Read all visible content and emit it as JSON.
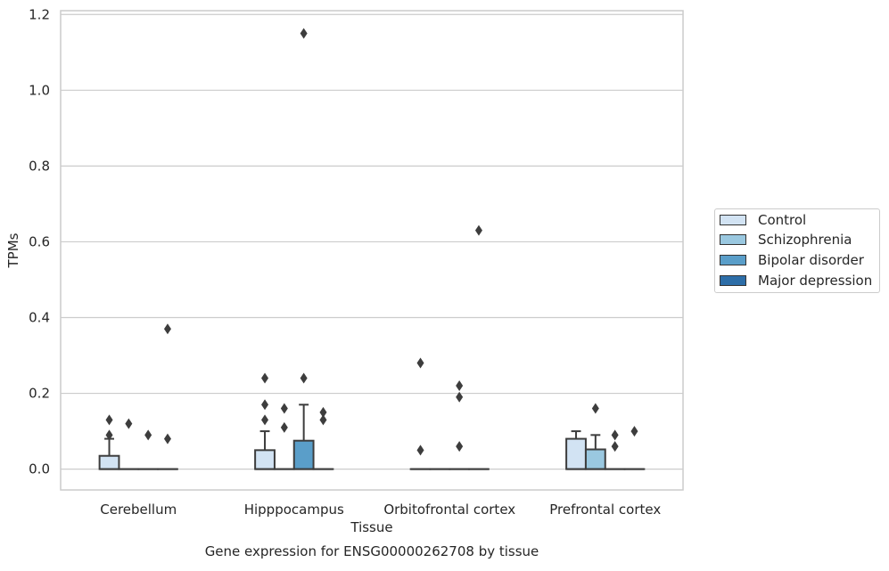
{
  "chart_data": {
    "type": "box",
    "title": "",
    "caption": "Gene expression for ENSG00000262708 by tissue",
    "xlabel": "Tissue",
    "ylabel": "TPMs",
    "ylim": [
      -0.055,
      1.21
    ],
    "yticks": [
      "0.0",
      "0.2",
      "0.4",
      "0.6",
      "0.8",
      "1.0",
      "1.2"
    ],
    "ytick_values": [
      0.0,
      0.2,
      0.4,
      0.6,
      0.8,
      1.0,
      1.2
    ],
    "grid": "horizontal",
    "legend_position": "right",
    "categories": [
      "Cerebellum",
      "Hipppocampus",
      "Orbitofrontal cortex",
      "Prefrontal cortex"
    ],
    "series": [
      {
        "name": "Control",
        "color": "#d2e3f3",
        "boxes": [
          {
            "q1": 0.0,
            "median": 0.0,
            "q3": 0.035,
            "whisker_low": 0.0,
            "whisker_high": 0.08,
            "outliers": [
              0.09,
              0.13
            ]
          },
          {
            "q1": 0.0,
            "median": 0.0,
            "q3": 0.05,
            "whisker_low": 0.0,
            "whisker_high": 0.1,
            "outliers": [
              0.13,
              0.17,
              0.24
            ]
          },
          {
            "q1": 0.0,
            "median": 0.0,
            "q3": 0.0,
            "whisker_low": 0.0,
            "whisker_high": 0.0,
            "outliers": [
              0.05,
              0.28
            ]
          },
          {
            "q1": 0.0,
            "median": 0.0,
            "q3": 0.08,
            "whisker_low": 0.0,
            "whisker_high": 0.1,
            "outliers": []
          }
        ]
      },
      {
        "name": "Schizophrenia",
        "color": "#9ac8e0",
        "boxes": [
          {
            "q1": 0.0,
            "median": 0.0,
            "q3": 0.0,
            "whisker_low": 0.0,
            "whisker_high": 0.0,
            "outliers": [
              0.12
            ]
          },
          {
            "q1": 0.0,
            "median": 0.0,
            "q3": 0.0,
            "whisker_low": 0.0,
            "whisker_high": 0.0,
            "outliers": [
              0.11,
              0.16
            ]
          },
          {
            "q1": 0.0,
            "median": 0.0,
            "q3": 0.0,
            "whisker_low": 0.0,
            "whisker_high": 0.0,
            "outliers": []
          },
          {
            "q1": 0.0,
            "median": 0.0,
            "q3": 0.052,
            "whisker_low": 0.0,
            "whisker_high": 0.09,
            "outliers": [
              0.16
            ]
          }
        ]
      },
      {
        "name": "Bipolar disorder",
        "color": "#5a9ec9",
        "boxes": [
          {
            "q1": 0.0,
            "median": 0.0,
            "q3": 0.0,
            "whisker_low": 0.0,
            "whisker_high": 0.0,
            "outliers": [
              0.09
            ]
          },
          {
            "q1": 0.0,
            "median": 0.0,
            "q3": 0.075,
            "whisker_low": 0.0,
            "whisker_high": 0.17,
            "outliers": [
              0.24,
              1.15
            ]
          },
          {
            "q1": 0.0,
            "median": 0.0,
            "q3": 0.0,
            "whisker_low": 0.0,
            "whisker_high": 0.0,
            "outliers": [
              0.06,
              0.19,
              0.22
            ]
          },
          {
            "q1": 0.0,
            "median": 0.0,
            "q3": 0.0,
            "whisker_low": 0.0,
            "whisker_high": 0.0,
            "outliers": [
              0.06,
              0.09
            ]
          }
        ]
      },
      {
        "name": "Major depression",
        "color": "#2d6ea8",
        "boxes": [
          {
            "q1": 0.0,
            "median": 0.0,
            "q3": 0.0,
            "whisker_low": 0.0,
            "whisker_high": 0.0,
            "outliers": [
              0.08,
              0.37
            ]
          },
          {
            "q1": 0.0,
            "median": 0.0,
            "q3": 0.0,
            "whisker_low": 0.0,
            "whisker_high": 0.0,
            "outliers": [
              0.13,
              0.15
            ]
          },
          {
            "q1": 0.0,
            "median": 0.0,
            "q3": 0.0,
            "whisker_low": 0.0,
            "whisker_high": 0.0,
            "outliers": [
              0.63
            ]
          },
          {
            "q1": 0.0,
            "median": 0.0,
            "q3": 0.0,
            "whisker_low": 0.0,
            "whisker_high": 0.0,
            "outliers": [
              0.1
            ]
          }
        ]
      }
    ]
  }
}
